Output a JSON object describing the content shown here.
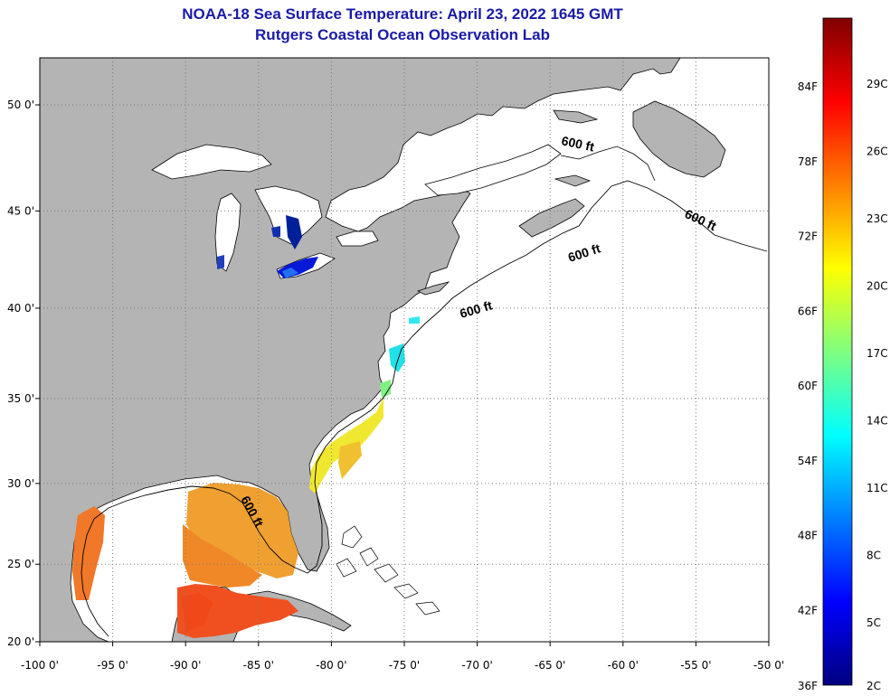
{
  "header": {
    "title": "NOAA-18 Sea Surface Temperature:  April 23, 2022 1645 GMT",
    "subtitle": "Rutgers Coastal Ocean Observation Lab"
  },
  "map": {
    "lon_labels": [
      "-100 0'",
      "-95 0'",
      "-90 0'",
      "-85 0'",
      "-80 0'",
      "-75 0'",
      "-70 0'",
      "-65 0'",
      "-60 0'",
      "-55 0'",
      "-50 0'"
    ],
    "lat_labels": [
      "20 0'",
      "25 0'",
      "30 0'",
      "35 0'",
      "40 0'",
      "45 0'",
      "50 0'"
    ],
    "contour_label": "600 ft",
    "colors": {
      "land": "#b4b4b4",
      "ocean": "#ffffff",
      "coast": "#000000",
      "grid": "#7a7a7a"
    }
  },
  "colorbar": {
    "fahrenheit_labels": [
      "84F",
      "78F",
      "72F",
      "66F",
      "60F",
      "54F",
      "48F",
      "42F",
      "36F"
    ],
    "celsius_labels": [
      "29C",
      "26C",
      "23C",
      "20C",
      "17C",
      "14C",
      "11C",
      "8C",
      "5C",
      "2C"
    ],
    "colors": [
      "#00007f",
      "#0000ff",
      "#007fff",
      "#00ffff",
      "#7fff7f",
      "#ffff00",
      "#ff7f00",
      "#ff0000",
      "#7f0000"
    ]
  }
}
